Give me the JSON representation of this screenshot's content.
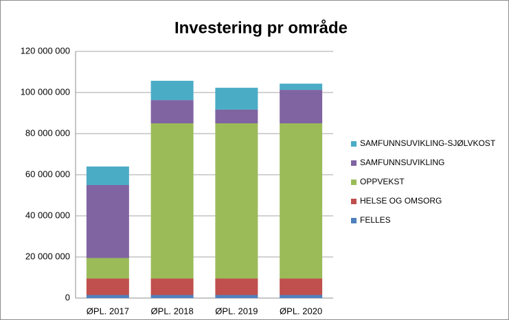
{
  "chart_data": {
    "type": "stacked_bar",
    "title": "Investering pr område",
    "categories": [
      "ØPL. 2017",
      "ØPL. 2018",
      "ØPL. 2019",
      "ØPL. 2020"
    ],
    "series": [
      {
        "name": "FELLES",
        "color": "#4f81bd",
        "values": [
          1500000,
          1500000,
          1500000,
          1500000
        ]
      },
      {
        "name": "HELSE OG OMSORG",
        "color": "#c0504d",
        "values": [
          8000000,
          8000000,
          8000000,
          8000000
        ]
      },
      {
        "name": "OPPVEKST",
        "color": "#9bbb59",
        "values": [
          10000000,
          75500000,
          75500000,
          75500000
        ]
      },
      {
        "name": "SAMFUNNSUVIKLING",
        "color": "#8064a2",
        "values": [
          35500000,
          11300000,
          6700000,
          16300000
        ]
      },
      {
        "name": "SAMFUNNSUVIKLING-SJØLVKOST",
        "color": "#4bacc6",
        "values": [
          9000000,
          9400000,
          10600000,
          3000000
        ]
      }
    ],
    "ylim": [
      0,
      120000000
    ],
    "yticks": [
      0,
      {
        "value": 20000000,
        "label": "20 000 000"
      },
      {
        "value": 40000000,
        "label": "40 000 000"
      },
      {
        "value": 60000000,
        "label": "60 000 000"
      },
      {
        "value": 80000000,
        "label": "80 000 000"
      },
      {
        "value": 100000000,
        "label": "100 000 000"
      },
      {
        "value": 120000000,
        "label": "120 000 000"
      }
    ],
    "grid": true,
    "legend": "right"
  }
}
